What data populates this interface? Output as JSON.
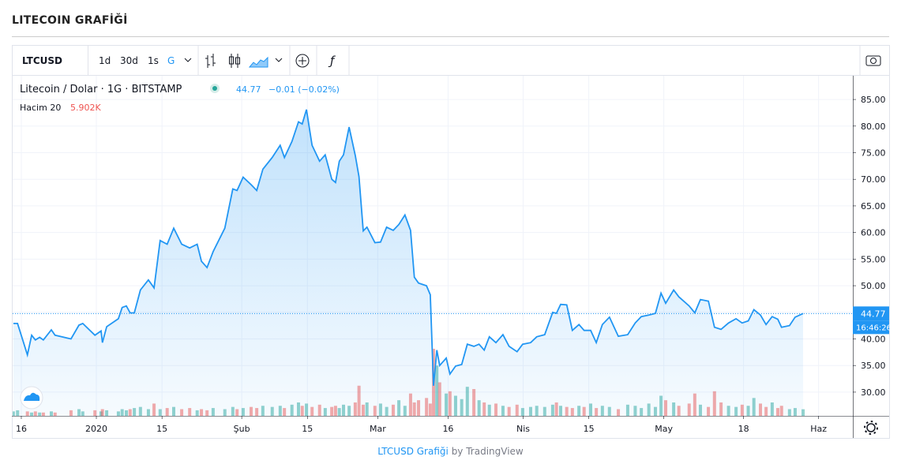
{
  "page_title": "LITECOIN GRAFİĞİ",
  "toolbar": {
    "symbol": "LTCUSD",
    "intervals": [
      "1d",
      "30d",
      "1s",
      "G"
    ]
  },
  "footer": {
    "link": "LTCUSD Grafiği",
    "by": "by TradingView"
  },
  "chart_data": {
    "type": "area",
    "legend": {
      "symbol": "Litecoin / Dolar · 1G · BITSTAMP",
      "price": "44.77",
      "change": "−0.01 (−0.02%)",
      "volume_name": "Hacim 20",
      "volume_value": "5.902K"
    },
    "x": [
      -1.7,
      -0.8,
      1.3,
      2.2,
      3,
      3.9,
      4.7,
      6.4,
      7.2,
      10.6,
      12.3,
      13.1,
      15.7,
      17,
      17.3,
      18.2,
      20.7,
      21.5,
      22.4,
      23.2,
      24.1,
      25.4,
      27.1,
      28.3,
      29.6,
      31.1,
      32.5,
      34.2,
      35.9,
      37.5,
      38.4,
      39.6,
      40.9,
      43.4,
      45.1,
      46,
      47.3,
      49,
      50.2,
      51.5,
      53.5,
      55.2,
      56.1,
      57.7,
      59.1,
      59.9,
      60.8,
      62,
      63.6,
      64.8,
      66.2,
      67,
      67.8,
      68.7,
      69.9,
      71.2,
      72,
      72.9,
      73.7,
      75.4,
      76.6,
      77.9,
      79.3,
      80.5,
      81.8,
      83,
      83.8,
      84.7,
      86.4,
      87.2,
      87.9,
      88.6,
      89.2,
      90.6,
      91.4,
      92.6,
      93.9,
      95.1,
      96.5,
      97.6,
      98.7,
      99.8,
      101.2,
      102.7,
      104,
      105.7,
      106.9,
      108.6,
      109.9,
      111.6,
      113.3,
      114.1,
      115,
      116.3,
      117.5,
      118.9,
      120,
      121.4,
      122.6,
      123.9,
      125.4,
      127.3,
      129.3,
      130.9,
      132.2,
      133.8,
      135.2,
      136.4,
      137.4,
      139.1,
      140.2,
      142.4,
      143.6,
      144.8,
      146.5,
      147.8,
      149.2,
      150.8,
      152.4,
      153.7,
      155,
      156.2,
      157.6,
      158.8,
      160.1,
      161.3,
      162.1,
      163.8,
      165,
      166.7
    ],
    "series": [
      {
        "color": "#2196f3",
        "values": [
          42.9,
          42.9,
          37.0,
          40.7,
          39.8,
          40.3,
          39.8,
          41.7,
          40.7,
          40,
          42.6,
          42.9,
          40.7,
          41.5,
          39.3,
          42.3,
          43.8,
          45.9,
          46.2,
          44.9,
          44.9,
          49.2,
          51.1,
          49.6,
          58.5,
          57.8,
          60.8,
          57.8,
          57.1,
          57.8,
          54.6,
          53.4,
          56.4,
          60.8,
          68.2,
          67.9,
          70.4,
          69,
          67.9,
          71.9,
          74.1,
          76.4,
          74.1,
          77.1,
          80.8,
          80.4,
          83.1,
          76.4,
          73.4,
          74.6,
          70,
          69.4,
          73.4,
          74.6,
          79.8,
          74.5,
          70.5,
          60.3,
          61,
          58.1,
          58.2,
          61,
          60.4,
          61.5,
          63.3,
          60.4,
          51.6,
          50.5,
          50,
          48.3,
          31.2,
          37.9,
          35,
          36.4,
          33.4,
          34.9,
          35.2,
          39,
          38.6,
          39,
          37.9,
          40.4,
          39.3,
          40.8,
          38.6,
          37.6,
          39,
          39.3,
          40.4,
          40.8,
          45,
          44.8,
          46.5,
          46.4,
          41.6,
          42.7,
          41.6,
          41.6,
          39.3,
          42.7,
          44.1,
          40.5,
          40.8,
          43,
          44.2,
          44.5,
          44.8,
          48.6,
          46.7,
          49.2,
          47.9,
          46.2,
          44.9,
          47.4,
          47.1,
          42.2,
          41.8,
          43,
          43.8,
          43,
          43.4,
          45.5,
          44.5,
          42.7,
          44.2,
          43.7,
          42.2,
          42.5,
          44.1,
          44.77
        ]
      }
    ],
    "volume": {
      "up_color": "#26a69a",
      "down_color": "#ef5350",
      "values": [
        4,
        5,
        4,
        3,
        4,
        3,
        3,
        4,
        3,
        5,
        6,
        4,
        5,
        4,
        6,
        5,
        4,
        6,
        5,
        6,
        7,
        8,
        6,
        11,
        6,
        7,
        8,
        6,
        7,
        5,
        6,
        5,
        7,
        6,
        8,
        6,
        7,
        8,
        7,
        9,
        8,
        9,
        7,
        10,
        12,
        9,
        11,
        8,
        10,
        7,
        8,
        9,
        7,
        10,
        9,
        12,
        27,
        10,
        12,
        9,
        11,
        8,
        10,
        14,
        9,
        20,
        12,
        14,
        16,
        11,
        60,
        45,
        30,
        20,
        22,
        18,
        15,
        26,
        24,
        14,
        12,
        10,
        11,
        9,
        8,
        10,
        7,
        8,
        9,
        8,
        10,
        12,
        9,
        8,
        7,
        9,
        8,
        11,
        7,
        9,
        8,
        6,
        10,
        9,
        7,
        11,
        8,
        18,
        14,
        12,
        9,
        11,
        20,
        10,
        8,
        22,
        12,
        9,
        8,
        10,
        9,
        16,
        11,
        8,
        12,
        7,
        9,
        6,
        7,
        5.902
      ]
    },
    "last_label": "44.77",
    "countdown": "16:46:26",
    "xlim": [
      -1.85,
      177.3
    ],
    "xticks": [
      {
        "value": 0,
        "label": "16"
      },
      {
        "value": 16,
        "label": "2020"
      },
      {
        "value": 30,
        "label": "15"
      },
      {
        "value": 47,
        "label": "Şub"
      },
      {
        "value": 61,
        "label": "15"
      },
      {
        "value": 76,
        "label": "Mar"
      },
      {
        "value": 91,
        "label": "16"
      },
      {
        "value": 107,
        "label": "Nis"
      },
      {
        "value": 121,
        "label": "15"
      },
      {
        "value": 137,
        "label": "May"
      },
      {
        "value": 154,
        "label": "18"
      },
      {
        "value": 170,
        "label": "Haz"
      }
    ],
    "ylim": [
      25.54,
      89.46
    ],
    "yticks": [
      {
        "value": 30,
        "label": "30.00"
      },
      {
        "value": 35,
        "label": "35.00"
      },
      {
        "value": 40,
        "label": "40.00"
      },
      {
        "value": 45,
        "label": "45.00"
      },
      {
        "value": 50,
        "label": "50.00"
      },
      {
        "value": 55,
        "label": "55.00"
      },
      {
        "value": 60,
        "label": "60.00"
      },
      {
        "value": 65,
        "label": "65.00"
      },
      {
        "value": 70,
        "label": "70.00"
      },
      {
        "value": 75,
        "label": "75.00"
      },
      {
        "value": 80,
        "label": "80.00"
      },
      {
        "value": 85,
        "label": "85.00"
      }
    ],
    "grid": true
  }
}
